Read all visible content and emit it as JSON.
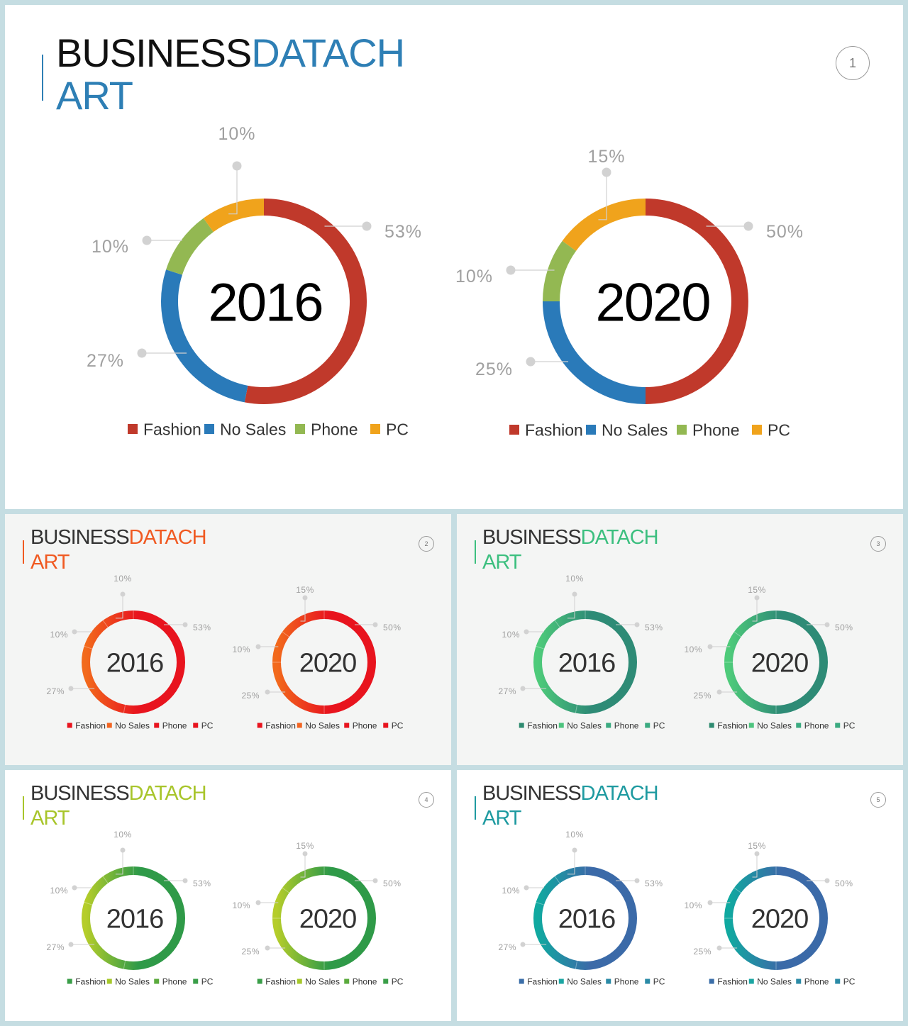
{
  "legend_labels": [
    "Fashion",
    "No Sales",
    "Phone",
    "PC"
  ],
  "slides": [
    {
      "id": "slide-1",
      "title_part1": "BUSINESS",
      "title_part2": "DATACH",
      "title_line2": "ART",
      "page_number": "1",
      "accent": "#2e7fb5",
      "background": "#ffffff",
      "scheme": "classic",
      "palette": [
        "#c0392b",
        "#2a7ab9",
        "#93b852",
        "#f0a31c"
      ]
    },
    {
      "id": "slide-2",
      "title_part1": "BUSINESS",
      "title_part2": "DATACH",
      "title_line2": "ART",
      "page_number": "2",
      "accent": "#f05a22",
      "background": "#f4f5f4",
      "scheme": "gradient",
      "palette": [
        "#e8141e",
        "#f26522",
        "#e8141e",
        "#e8141e"
      ],
      "ring_gradient": [
        "#f26a1c",
        "#e8141e"
      ]
    },
    {
      "id": "slide-3",
      "title_part1": "BUSINESS",
      "title_part2": "DATACH",
      "title_line2": "ART",
      "page_number": "3",
      "accent": "#3cbf7f",
      "background": "#f4f5f4",
      "scheme": "gradient",
      "palette": [
        "#2e8b70",
        "#4dc47e",
        "#3aaa80",
        "#3aaa80"
      ],
      "ring_gradient": [
        "#4ecb7a",
        "#2e8b76"
      ]
    },
    {
      "id": "slide-4",
      "title_part1": "BUSINESS",
      "title_part2": "DATACH",
      "title_line2": "ART",
      "page_number": "4",
      "accent": "#a8c52b",
      "background": "#ffffff",
      "scheme": "gradient",
      "palette": [
        "#3a9e48",
        "#a6c82a",
        "#5aaa3c",
        "#3a9e48"
      ],
      "ring_gradient": [
        "#b5cd2a",
        "#2f9a48"
      ]
    },
    {
      "id": "slide-5",
      "title_part1": "BUSINESS",
      "title_part2": "DATACH",
      "title_line2": "ART",
      "page_number": "5",
      "accent": "#1e9aa0",
      "background": "#ffffff",
      "scheme": "gradient",
      "palette": [
        "#3a6ea8",
        "#1aa5a2",
        "#2a8aa6",
        "#2a8aa6"
      ],
      "ring_gradient": [
        "#10a9a0",
        "#3b6aa8"
      ]
    }
  ],
  "chart_data": [
    {
      "type": "pie",
      "title": "2016",
      "categories": [
        "Fashion",
        "No Sales",
        "Phone",
        "PC"
      ],
      "values": [
        53,
        27,
        10,
        10
      ],
      "labels": [
        "53%",
        "27%",
        "10%",
        "10%"
      ]
    },
    {
      "type": "pie",
      "title": "2020",
      "categories": [
        "Fashion",
        "No Sales",
        "Phone",
        "PC"
      ],
      "values": [
        50,
        25,
        10,
        15
      ],
      "labels": [
        "50%",
        "25%",
        "10%",
        "15%"
      ]
    }
  ]
}
